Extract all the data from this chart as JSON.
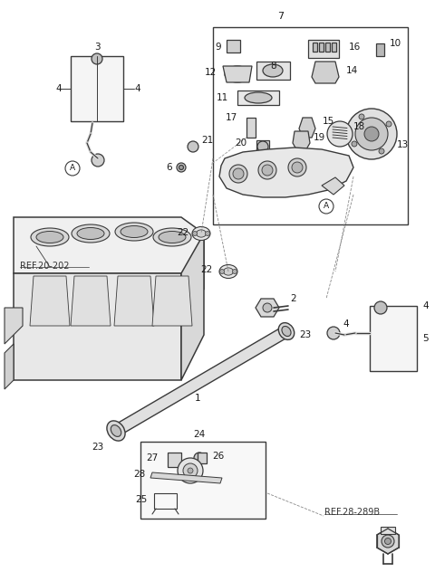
{
  "bg_color": "#ffffff",
  "line_color": "#3a3a3a",
  "text_color": "#1a1a1a",
  "fig_width": 4.8,
  "fig_height": 6.32,
  "ref1": "REF.20-202",
  "ref2": "REF.28-289B",
  "lw_main": 0.9,
  "lw_thin": 0.6,
  "lw_thick": 1.1,
  "fontsize_label": 7.5,
  "fontsize_ref": 7.0
}
